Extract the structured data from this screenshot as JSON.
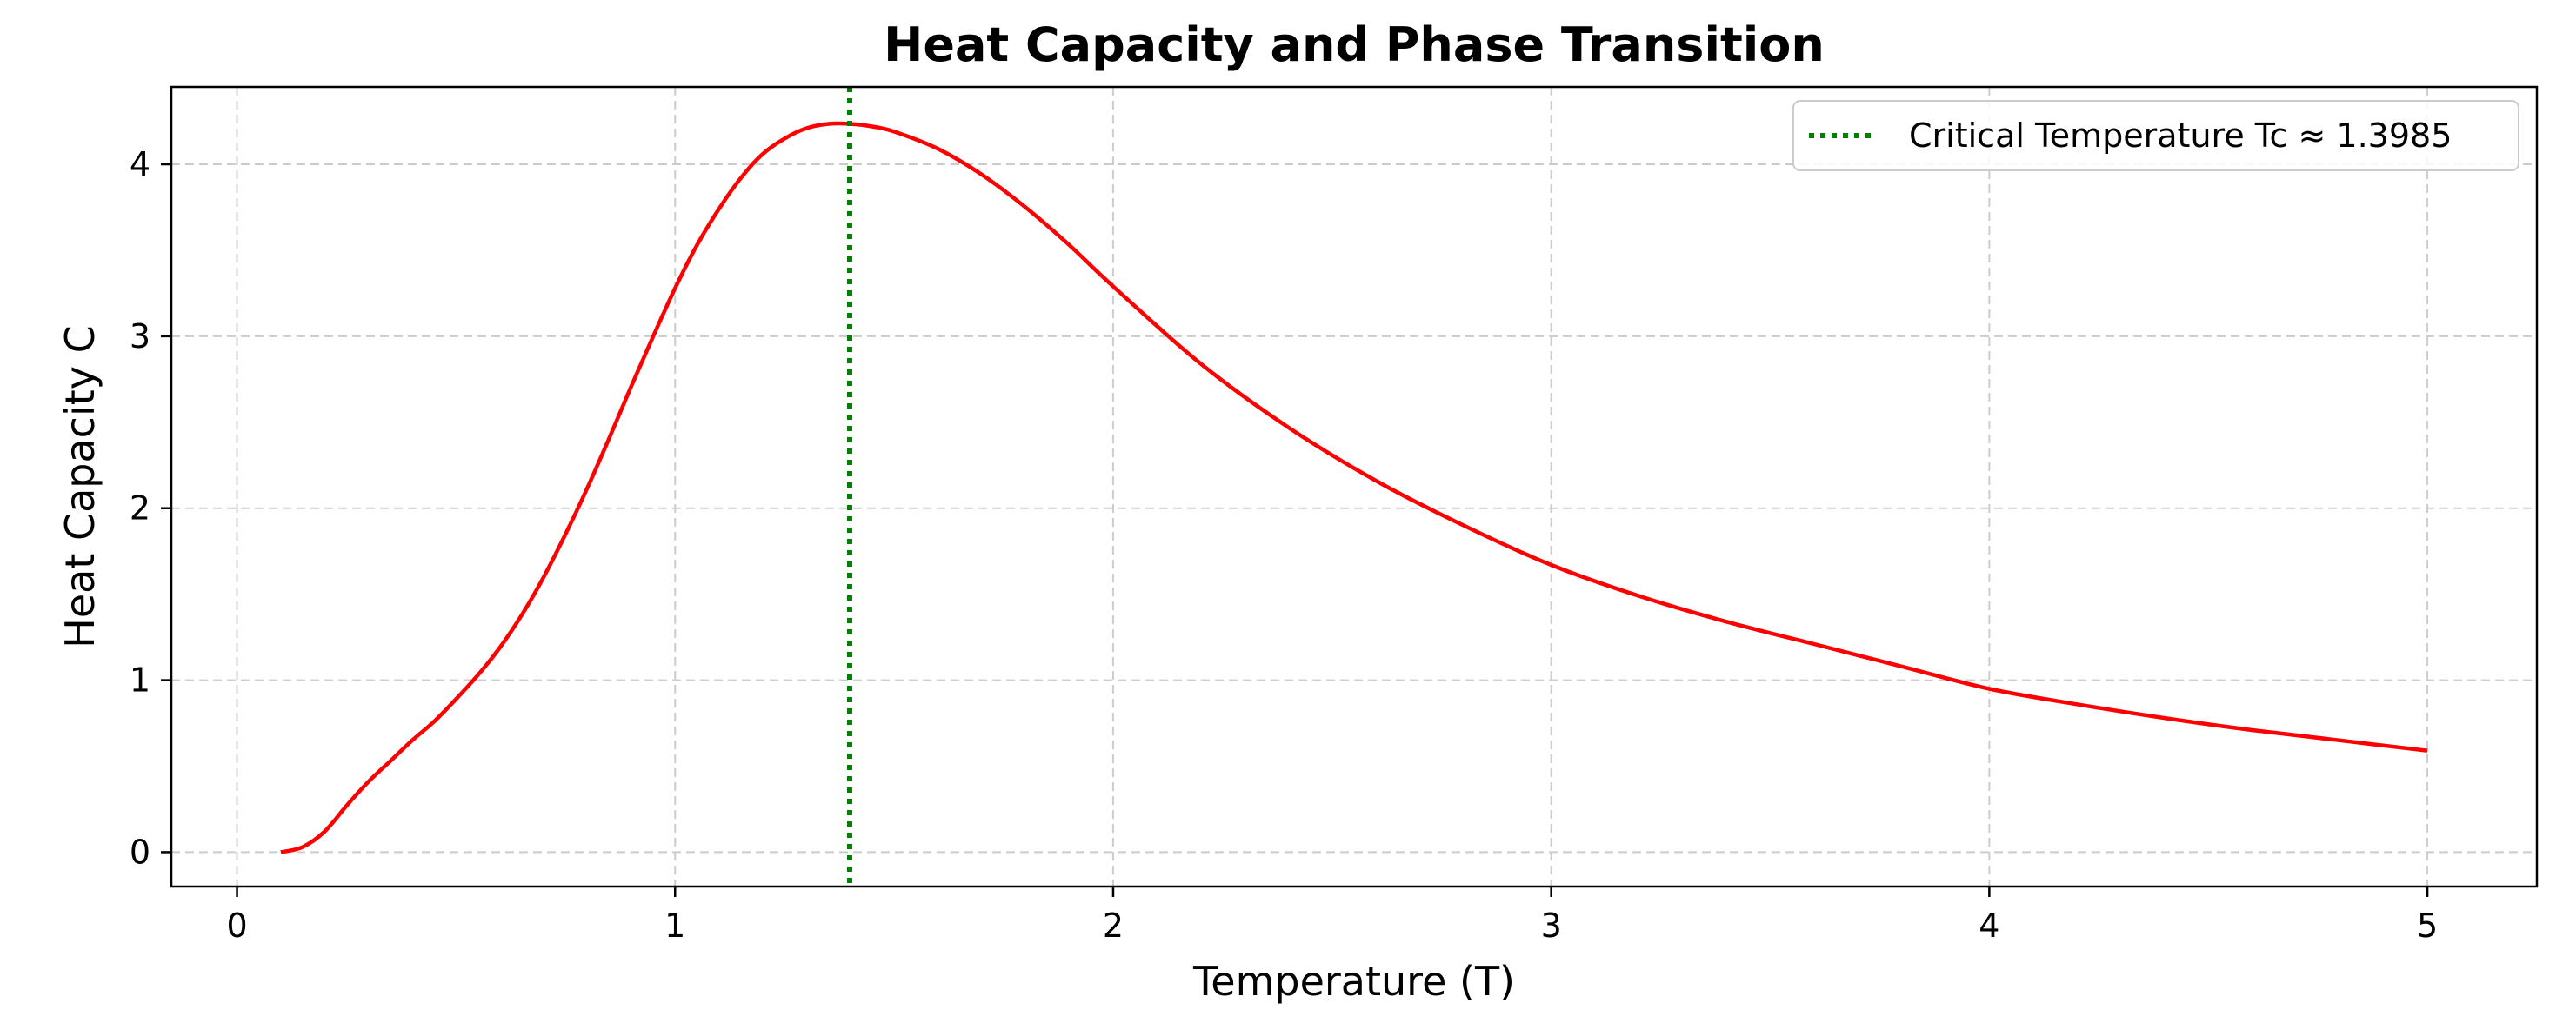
{
  "chart_data": {
    "type": "line",
    "title": "Heat Capacity and Phase Transition",
    "xlabel": "Temperature (T)",
    "ylabel": "Heat Capacity C",
    "xlim": [
      -0.15,
      5.25
    ],
    "ylim": [
      -0.2,
      4.45
    ],
    "x_ticks": [
      0,
      1,
      2,
      3,
      4,
      5
    ],
    "y_ticks": [
      0,
      1,
      2,
      3,
      4
    ],
    "grid": true,
    "legend_position": "top-right",
    "series": [
      {
        "color": "#ff0000",
        "style": "solid",
        "points": [
          [
            0.1,
            0.0
          ],
          [
            0.15,
            0.03
          ],
          [
            0.2,
            0.12
          ],
          [
            0.25,
            0.27
          ],
          [
            0.3,
            0.41
          ],
          [
            0.35,
            0.53
          ],
          [
            0.4,
            0.65
          ],
          [
            0.45,
            0.76
          ],
          [
            0.5,
            0.89
          ],
          [
            0.55,
            1.03
          ],
          [
            0.6,
            1.19
          ],
          [
            0.65,
            1.38
          ],
          [
            0.7,
            1.6
          ],
          [
            0.75,
            1.85
          ],
          [
            0.8,
            2.12
          ],
          [
            0.85,
            2.41
          ],
          [
            0.9,
            2.71
          ],
          [
            0.95,
            3.0
          ],
          [
            1.0,
            3.28
          ],
          [
            1.05,
            3.53
          ],
          [
            1.1,
            3.74
          ],
          [
            1.15,
            3.92
          ],
          [
            1.2,
            4.06
          ],
          [
            1.25,
            4.15
          ],
          [
            1.3,
            4.21
          ],
          [
            1.35,
            4.235
          ],
          [
            1.4,
            4.235
          ],
          [
            1.45,
            4.22
          ],
          [
            1.5,
            4.19
          ],
          [
            1.6,
            4.09
          ],
          [
            1.7,
            3.94
          ],
          [
            1.8,
            3.75
          ],
          [
            1.9,
            3.53
          ],
          [
            2.0,
            3.29
          ],
          [
            2.2,
            2.84
          ],
          [
            2.4,
            2.47
          ],
          [
            2.6,
            2.16
          ],
          [
            2.8,
            1.9
          ],
          [
            3.0,
            1.67
          ],
          [
            3.2,
            1.49
          ],
          [
            3.4,
            1.34
          ],
          [
            3.6,
            1.21
          ],
          [
            3.8,
            1.08
          ],
          [
            4.0,
            0.95
          ],
          [
            4.2,
            0.86
          ],
          [
            4.4,
            0.78
          ],
          [
            4.6,
            0.71
          ],
          [
            4.8,
            0.65
          ],
          [
            5.0,
            0.59
          ]
        ]
      }
    ],
    "reference_lines": [
      {
        "orientation": "vertical",
        "x": 1.3985,
        "color": "#008000",
        "style": "dotted",
        "name": "Critical Temperature Tc ≈ 1.3985"
      }
    ]
  }
}
